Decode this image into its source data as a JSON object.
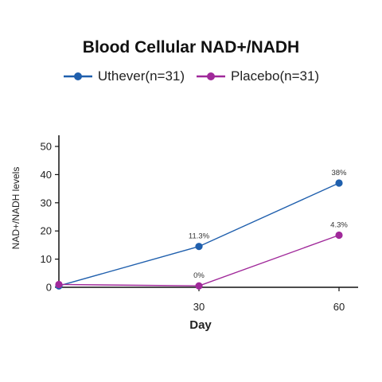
{
  "chart_data": {
    "type": "line",
    "title": "Blood Cellular NAD+/NADH",
    "xlabel": "Day",
    "ylabel": "NAD+/NADH levels",
    "x": [
      0,
      30,
      60
    ],
    "xticks": [
      30,
      60
    ],
    "yticks": [
      0,
      10,
      20,
      30,
      40,
      50
    ],
    "xlim": [
      0,
      64
    ],
    "ylim": [
      0,
      50
    ],
    "legend_position": "top-center",
    "grid": false,
    "series": [
      {
        "name": "Uthever(n=31)",
        "color": "#1f5fad",
        "values": [
          0.5,
          14.5,
          37
        ],
        "labels": [
          "",
          "11.3%",
          "38%"
        ]
      },
      {
        "name": "Placebo(n=31)",
        "color": "#a0299a",
        "values": [
          1,
          0.5,
          18.5
        ],
        "labels": [
          "",
          "0%",
          "4.3%"
        ]
      }
    ]
  }
}
